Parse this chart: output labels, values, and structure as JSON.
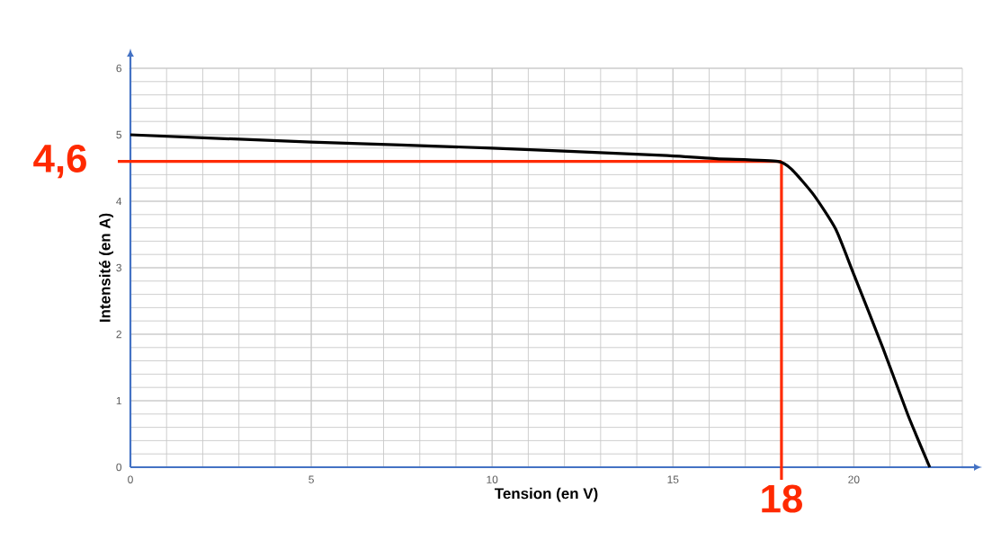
{
  "chart_data": {
    "type": "line",
    "xlabel": "Tension (en V)",
    "ylabel": "Intensité (en A)",
    "x": [
      0,
      5,
      10,
      14.7,
      16.2,
      17.9,
      18.3,
      18.9,
      19.5,
      20.0,
      20.8,
      21.5,
      22.1
    ],
    "series": [
      {
        "color": "#000000",
        "values": [
          5.0,
          4.89,
          4.8,
          4.69,
          4.64,
          4.6,
          4.47,
          4.09,
          3.58,
          2.9,
          1.8,
          0.78,
          0
        ]
      }
    ],
    "xlim": [
      0,
      23
    ],
    "ylim": [
      0,
      6
    ],
    "xticks": [
      0,
      5,
      10,
      15,
      20
    ],
    "yticks": [
      0,
      1,
      2,
      3,
      4,
      5,
      6
    ],
    "grid": true,
    "marker": "none",
    "ref_lines": [
      {
        "axis": "x",
        "value": 18,
        "label": "18",
        "color": "#ff2a00"
      },
      {
        "axis": "y",
        "value": 4.6,
        "label": "4,6",
        "color": "#ff2a00"
      }
    ]
  }
}
